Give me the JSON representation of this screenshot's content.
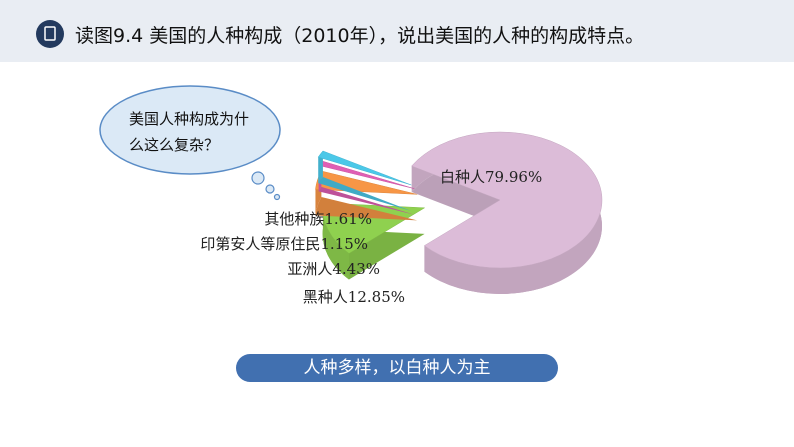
{
  "chart_data": {
    "type": "pie",
    "title": "读图9.4 美国的人种构成（2010年），说出美国的人种的构成特点。",
    "categories": [
      "白种人",
      "黑种人",
      "亚洲人",
      "印第安人等原住民",
      "其他种族"
    ],
    "values": [
      79.96,
      12.85,
      4.43,
      1.15,
      1.61
    ],
    "value_labels": [
      "79.96%",
      "12.85%",
      "4.43%",
      "1.15%",
      "1.61%"
    ],
    "colors": [
      "#dcbcd8",
      "#8fd14f",
      "#f79646",
      "#e05fb4",
      "#4bc8e8"
    ],
    "annotations": [
      "美国人种构成为什么这么复杂？",
      "人种多样，以白种人为主"
    ]
  }
}
